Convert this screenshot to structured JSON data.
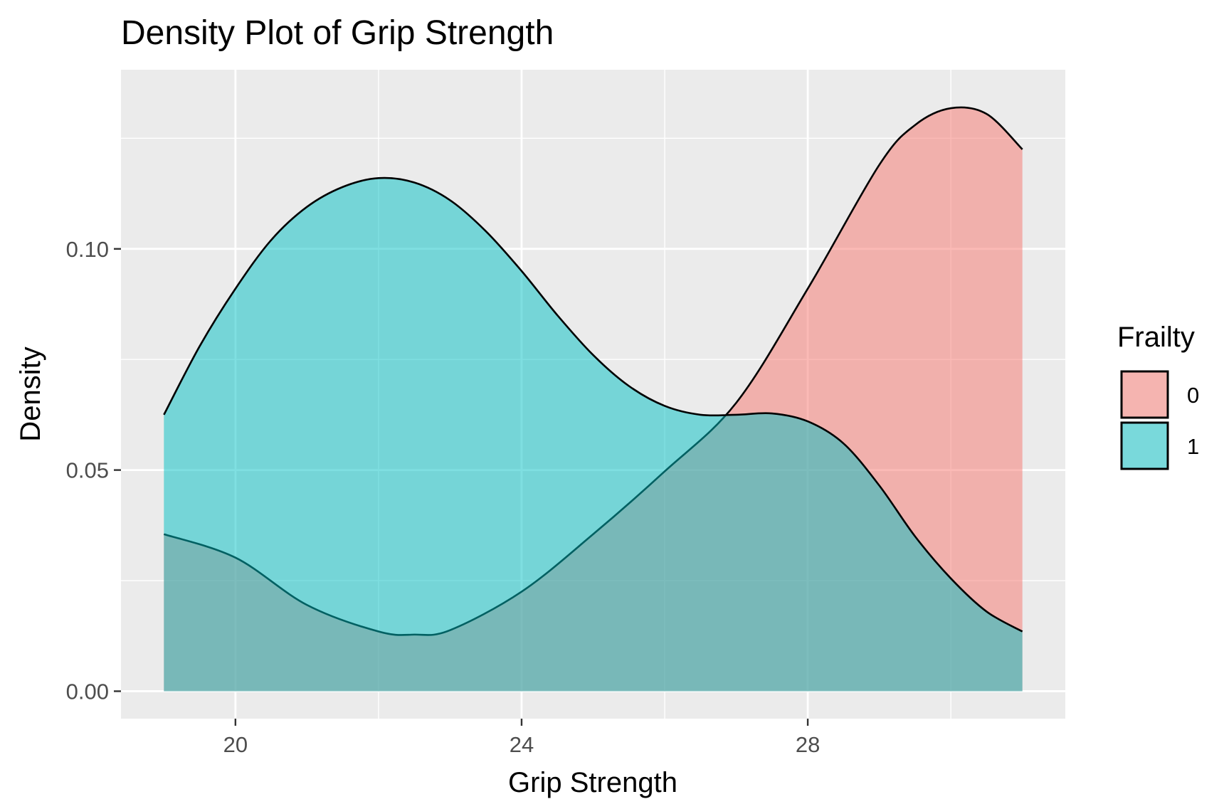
{
  "chart_data": {
    "type": "area",
    "title": "Density Plot of Grip Strength",
    "xlabel": "Grip Strength",
    "ylabel": "Density",
    "xlim": [
      18.4,
      31.6
    ],
    "ylim": [
      -0.0062,
      0.1405
    ],
    "x_ticks": [
      20,
      24,
      28
    ],
    "x_tick_labels": [
      "20",
      "24",
      "28"
    ],
    "x_minor_ticks": [
      22,
      26,
      30
    ],
    "y_ticks": [
      0.0,
      0.05,
      0.1
    ],
    "y_tick_labels": [
      "0.00",
      "0.05",
      "0.10"
    ],
    "y_minor_ticks": [
      0.025,
      0.075,
      0.125
    ],
    "grid": true,
    "legend": {
      "title": "Frailty",
      "position": "right"
    },
    "series": [
      {
        "name": "0",
        "fill": "#F8766D",
        "points": [
          [
            19.0,
            0.0355
          ],
          [
            20.0,
            0.0302
          ],
          [
            21.0,
            0.0195
          ],
          [
            22.0,
            0.0135
          ],
          [
            22.5,
            0.0128
          ],
          [
            23.0,
            0.0138
          ],
          [
            24.0,
            0.0225
          ],
          [
            25.0,
            0.0355
          ],
          [
            26.0,
            0.0497
          ],
          [
            27.0,
            0.0652
          ],
          [
            28.0,
            0.091
          ],
          [
            29.0,
            0.119
          ],
          [
            29.5,
            0.128
          ],
          [
            30.0,
            0.1318
          ],
          [
            30.5,
            0.1305
          ],
          [
            31.0,
            0.1225
          ]
        ]
      },
      {
        "name": "1",
        "fill": "#00BFC4",
        "points": [
          [
            19.0,
            0.0625
          ],
          [
            19.5,
            0.078
          ],
          [
            20.0,
            0.091
          ],
          [
            20.5,
            0.102
          ],
          [
            21.0,
            0.1095
          ],
          [
            21.5,
            0.114
          ],
          [
            22.0,
            0.116
          ],
          [
            22.5,
            0.115
          ],
          [
            23.0,
            0.111
          ],
          [
            23.5,
            0.104
          ],
          [
            24.0,
            0.095
          ],
          [
            24.5,
            0.085
          ],
          [
            25.0,
            0.076
          ],
          [
            25.5,
            0.069
          ],
          [
            26.0,
            0.0645
          ],
          [
            26.5,
            0.0625
          ],
          [
            27.0,
            0.0625
          ],
          [
            27.5,
            0.0628
          ],
          [
            28.0,
            0.061
          ],
          [
            28.5,
            0.056
          ],
          [
            29.0,
            0.0465
          ],
          [
            29.5,
            0.035
          ],
          [
            30.0,
            0.0255
          ],
          [
            30.5,
            0.018
          ],
          [
            31.0,
            0.0135
          ]
        ]
      }
    ],
    "colors": {
      "panel_background": "#EBEBEB",
      "grid": "#FFFFFF",
      "outline": "#000000",
      "tick_label": "#4D4D4D"
    }
  }
}
